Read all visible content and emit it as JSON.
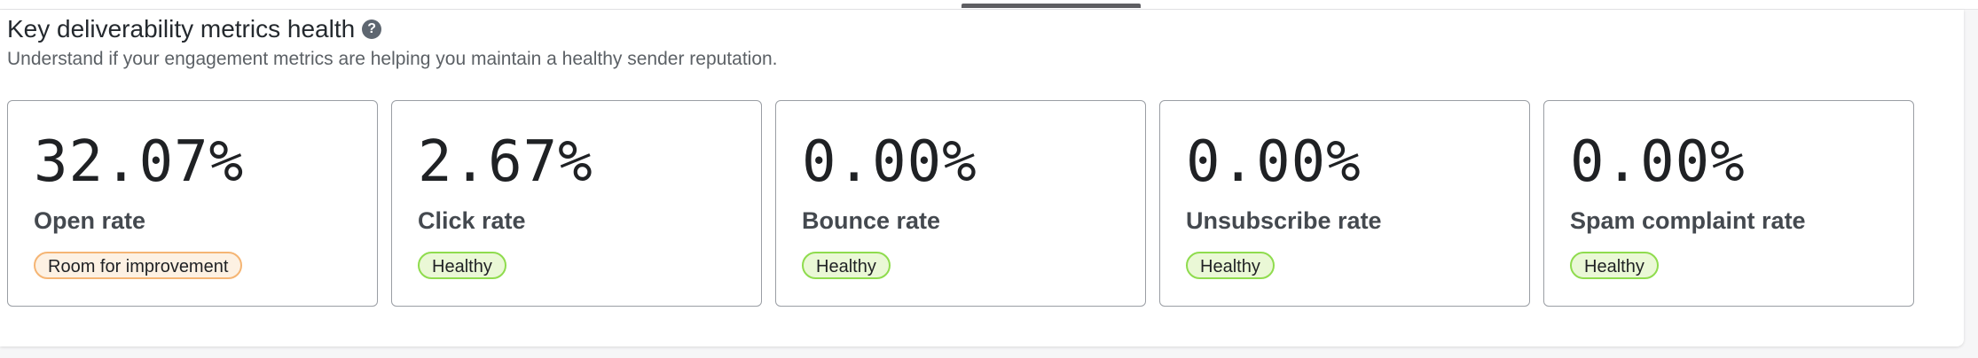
{
  "header": {
    "title": "Key deliverability metrics health",
    "help_icon": "question-circle-icon",
    "subtitle": "Understand if your engagement metrics are helping you maintain a healthy sender reputation."
  },
  "metrics": [
    {
      "value": "32.07%",
      "label": "Open rate",
      "status": "Room for improvement",
      "status_bg": "#fdf1e3",
      "status_border": "#f5b574"
    },
    {
      "value": "2.67%",
      "label": "Click rate",
      "status": "Healthy",
      "status_bg": "#eaf8d6",
      "status_border": "#8fdc4e"
    },
    {
      "value": "0.00%",
      "label": "Bounce rate",
      "status": "Healthy",
      "status_bg": "#eaf8d6",
      "status_border": "#8fdc4e"
    },
    {
      "value": "0.00%",
      "label": "Unsubscribe rate",
      "status": "Healthy",
      "status_bg": "#eaf8d6",
      "status_border": "#8fdc4e"
    },
    {
      "value": "0.00%",
      "label": "Spam complaint rate",
      "status": "Healthy",
      "status_bg": "#eaf8d6",
      "status_border": "#8fdc4e"
    }
  ]
}
